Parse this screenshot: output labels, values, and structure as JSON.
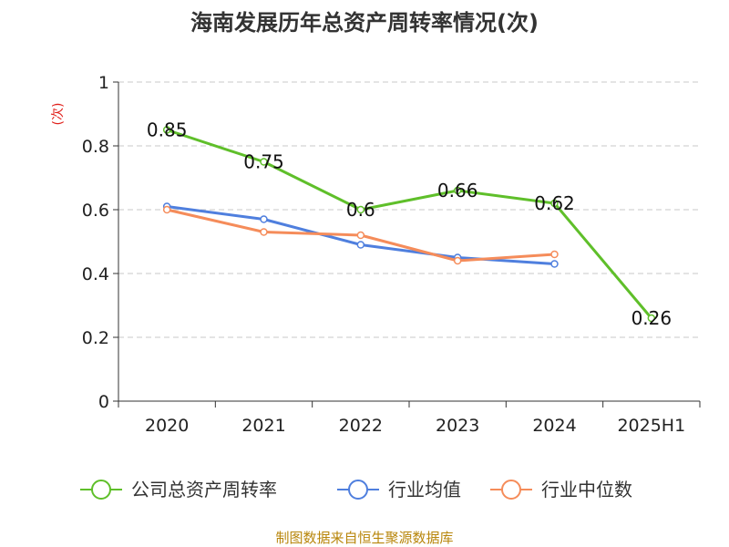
{
  "chart_data": {
    "type": "line",
    "title": "海南发展历年总资产周转率情况(次)",
    "ylabel": "(次)",
    "xlabel": "",
    "categories": [
      "2020",
      "2021",
      "2022",
      "2023",
      "2024",
      "2025H1"
    ],
    "ylim": [
      0,
      1
    ],
    "yticks": [
      "0",
      "0.2",
      "0.4",
      "0.6",
      "0.8",
      "1"
    ],
    "grid": true,
    "legend_position": "bottom",
    "series": [
      {
        "name": "公司总资产周转率",
        "color": "#5fbf2a",
        "values": [
          0.85,
          0.75,
          0.6,
          0.66,
          0.62,
          0.26
        ],
        "labels": [
          "0.85",
          "0.75",
          "0.6",
          "0.66",
          "0.62",
          "0.26"
        ]
      },
      {
        "name": "行业均值",
        "color": "#4f7fde",
        "values": [
          0.61,
          0.57,
          0.49,
          0.45,
          0.43,
          null
        ]
      },
      {
        "name": "行业中位数",
        "color": "#f58c5a",
        "values": [
          0.6,
          0.53,
          0.52,
          0.44,
          0.46,
          null
        ]
      }
    ],
    "source": "制图数据来自恒生聚源数据库"
  }
}
